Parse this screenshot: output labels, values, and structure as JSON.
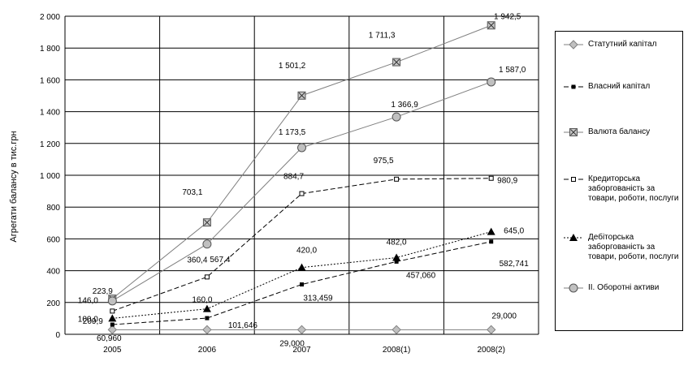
{
  "chart_data": {
    "type": "line",
    "title": "",
    "xlabel": "",
    "ylabel": "Агрегати балансу в тис.грн",
    "categories": [
      "2005",
      "2006",
      "2007",
      "2008(1)",
      "2008(2)"
    ],
    "ylim": [
      0,
      2000
    ],
    "yticks": [
      0,
      200,
      400,
      600,
      800,
      1000,
      1200,
      1400,
      1600,
      1800,
      2000
    ],
    "ytick_labels": [
      "0",
      "200",
      "400",
      "600",
      "800",
      "1 000",
      "1 200",
      "1 400",
      "1 600",
      "1 800",
      "2 000"
    ],
    "grid": true,
    "legend_position": "right",
    "series": [
      {
        "name": "Статутний капітал",
        "marker": "diamond",
        "color": "#7f7f7f",
        "values": [
          29.0,
          29.0,
          29.0,
          29.0,
          29.0
        ],
        "labels": [
          "",
          "",
          "29,000",
          "",
          "29,000"
        ]
      },
      {
        "name": "Власний капітал",
        "marker": "square",
        "color": "#000000",
        "values": [
          60.96,
          101.646,
          313.459,
          457.06,
          582.741
        ],
        "labels": [
          "60,960",
          "101,646",
          "313,459",
          "457,060",
          "582,741"
        ]
      },
      {
        "name": "Валюта балансу",
        "marker": "xsquare",
        "color": "#7f7f7f",
        "values": [
          223.9,
          703.1,
          1501.2,
          1711.3,
          1942.5
        ],
        "labels": [
          "223,9",
          "703,1",
          "1 501,2",
          "1 711,3",
          "1 942,5"
        ]
      },
      {
        "name": "Кредиторська заборгованість за товари, роботи, послуги",
        "marker": "opensquare",
        "color": "#000000",
        "values": [
          146.0,
          360.4,
          884.7,
          975.5,
          980.9
        ],
        "labels": [
          "146,0",
          "360,4",
          "884,7",
          "975,5",
          "980,9"
        ]
      },
      {
        "name": "Дебіторська заборгованість за товари, роботи, послуги",
        "marker": "triangle",
        "color": "#000000",
        "values": [
          100.0,
          160.0,
          420.0,
          482.0,
          645.0
        ],
        "labels": [
          "100,0",
          "160,0",
          "420,0",
          "482,0",
          "645,0"
        ]
      },
      {
        "name": "ІІ. Оборотні активи",
        "marker": "circle",
        "color": "#7f7f7f",
        "values": [
          209.9,
          567.4,
          1173.5,
          1366.9,
          1587.0
        ],
        "labels": [
          "209,9",
          "567,4",
          "1 173,5",
          "1 366,9",
          "1 587,0"
        ]
      }
    ]
  }
}
